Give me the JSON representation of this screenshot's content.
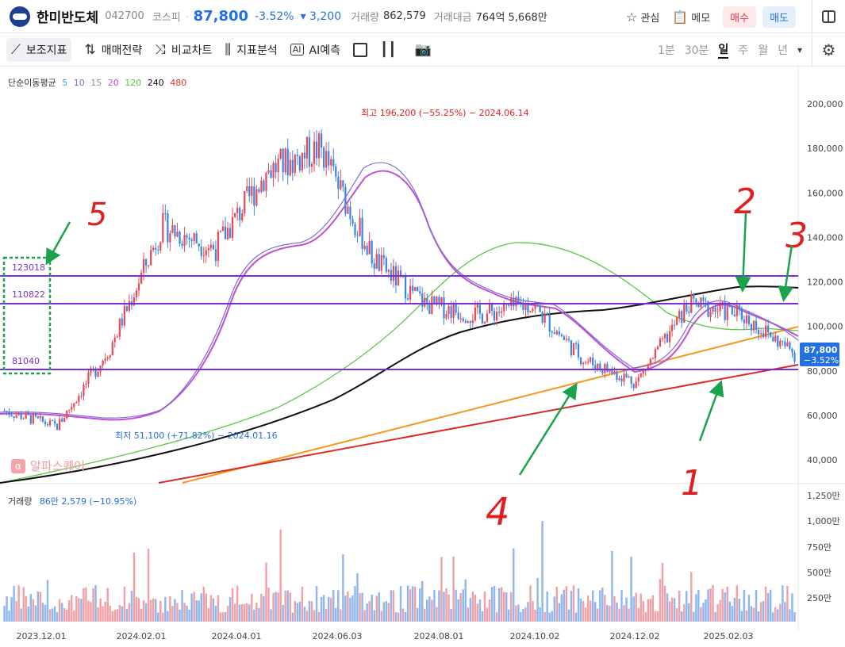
{
  "header": {
    "stock_name": "한미반도체",
    "stock_code": "042700",
    "market": "코스피",
    "price": "87,800",
    "change_pct": "-3.52%",
    "change_amt": "▾ 3,200",
    "volume_label": "거래량",
    "volume_value": "862,579",
    "amount_label": "거래대금",
    "amount_value": "764억 5,668만",
    "watch_label": "관심",
    "memo_label": "메모",
    "buy_label": "매수",
    "sell_label": "매도"
  },
  "toolbar": {
    "indicator_label": "보조지표",
    "strategy_label": "매매전략",
    "compare_label": "비교차트",
    "analysis_label": "지표분석",
    "ai_label": "AI예측",
    "periods": [
      "1분",
      "30분",
      "일",
      "주",
      "월",
      "년"
    ],
    "selected_period": "일"
  },
  "ma_legend": {
    "title": "단순이동평균",
    "items": [
      {
        "label": "5",
        "color": "#33a1e0"
      },
      {
        "label": "10",
        "color": "#7b6fd6"
      },
      {
        "label": "15",
        "color": "#8e8ea0"
      },
      {
        "label": "20",
        "color": "#c34fd6"
      },
      {
        "label": "120",
        "color": "#5cc84a"
      },
      {
        "label": "240",
        "color": "#111111"
      },
      {
        "label": "480",
        "color": "#e0322f"
      }
    ]
  },
  "price_axis": [
    "200,000",
    "180,000",
    "160,000",
    "140,000",
    "120,000",
    "100,000",
    "80,000",
    "60,000",
    "40,000"
  ],
  "volume_axis": [
    "1,250만",
    "1,000만",
    "750만",
    "500만",
    "250만"
  ],
  "date_axis": [
    "2023.12.01",
    "2024.02.01",
    "2024.04.01",
    "2024.06.03",
    "2024.08.01",
    "2024.10.02",
    "2024.12.02",
    "2025.02.03"
  ],
  "annotations": {
    "high": "최고 196,200 (−55.25%) − 2024.06.14",
    "low": "최저 51,100 (+71.82%) − 2024.01.16",
    "current_price": "87,800",
    "current_change": "−3.52%",
    "levels": [
      "123018",
      "110822",
      "81040"
    ],
    "hand_numbers": [
      "1",
      "2",
      "3",
      "4",
      "5"
    ]
  },
  "volume_legend": {
    "label": "거래량",
    "value": "86만 2,579 (−10.95%)"
  },
  "watermark": "알파스퀘어",
  "colors": {
    "up": "#e84a55",
    "down": "#3a86e8",
    "level_line": "#7a2fd6",
    "annotation_red": "#e02020",
    "arrow_green": "#1aa34a",
    "trend_orange": "#f39a1e",
    "trend_red": "#d92a2a"
  },
  "chart_data": {
    "type": "candlestick",
    "x_range": [
      "2023-11",
      "2025-03"
    ],
    "ylim": [
      40000,
      210000
    ],
    "price_ticks": [
      200000,
      180000,
      160000,
      140000,
      120000,
      100000,
      80000,
      60000,
      40000
    ],
    "approx_close": [
      [
        "2023-12",
        62000
      ],
      [
        "2024-01",
        55000
      ],
      [
        "2024-02",
        90000
      ],
      [
        "2024-03",
        145000
      ],
      [
        "2024-04",
        135000
      ],
      [
        "2024-05",
        170000
      ],
      [
        "2024-06",
        180000
      ],
      [
        "2024-07",
        130000
      ],
      [
        "2024-08",
        110000
      ],
      [
        "2024-09",
        105000
      ],
      [
        "2024-10",
        110000
      ],
      [
        "2024-11",
        85000
      ],
      [
        "2024-12",
        75000
      ],
      [
        "2025-01",
        110000
      ],
      [
        "2025-02",
        105000
      ],
      [
        "2025-03",
        87800
      ]
    ],
    "horizontal_levels": [
      123018,
      110822,
      81040
    ],
    "high": 196200,
    "low": 51100
  }
}
